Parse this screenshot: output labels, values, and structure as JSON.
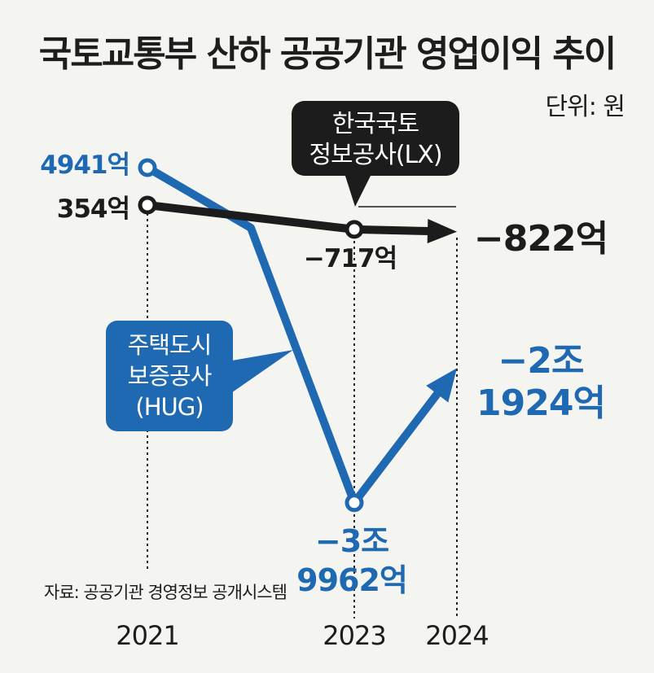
{
  "title": "국토교통부 산하 공공기관 영업이익 추이",
  "unit": "단위: 원",
  "source": "자료: 공공기관 경영정보 공개시스템",
  "chart_data": {
    "type": "line",
    "x": [
      2021,
      2023,
      2024
    ],
    "tick_labels": [
      "2021",
      "2023",
      "2024"
    ],
    "series": [
      {
        "name_lines": [
          "한국국토",
          "정보공사(LX)"
        ],
        "color": "#1c1c1c",
        "values": [
          354,
          -717,
          -822
        ],
        "labels": [
          "354억",
          "−717억",
          "−822억"
        ]
      },
      {
        "name_lines": [
          "주택도시",
          "보증공사",
          "(HUG)"
        ],
        "color": "#1f69b3",
        "values": [
          4941,
          -39962,
          -21924
        ],
        "labels": [
          "4941억",
          "−3조\n9962억",
          "−2조\n1924억"
        ]
      }
    ],
    "ylabel": "억원",
    "legend": "callouts"
  }
}
